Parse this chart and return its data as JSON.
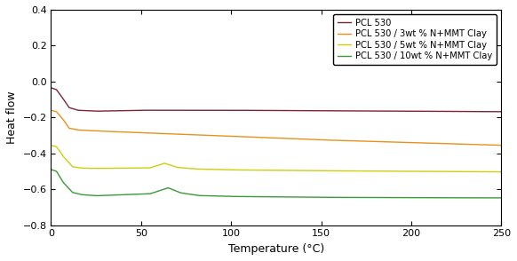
{
  "title": "",
  "xlabel": "Temperature (°C)",
  "ylabel": "Heat flow",
  "xlim": [
    0,
    250
  ],
  "ylim": [
    -0.8,
    0.4
  ],
  "xticks": [
    0,
    50,
    100,
    150,
    200,
    250
  ],
  "yticks": [
    -0.8,
    -0.6,
    -0.4,
    -0.2,
    0.0,
    0.2,
    0.4
  ],
  "curves": [
    {
      "label": "PCL 530",
      "color": "#7B2535",
      "x": [
        0,
        3,
        7,
        10,
        15,
        25,
        50,
        100,
        150,
        200,
        250
      ],
      "y": [
        -0.035,
        -0.045,
        -0.1,
        -0.145,
        -0.16,
        -0.165,
        -0.16,
        -0.16,
        -0.163,
        -0.165,
        -0.168
      ]
    },
    {
      "label": "PCL 530 / 3wt % N+MMT Clay",
      "color": "#E8911A",
      "x": [
        0,
        3,
        7,
        10,
        15,
        25,
        50,
        100,
        150,
        200,
        250
      ],
      "y": [
        -0.16,
        -0.168,
        -0.215,
        -0.26,
        -0.27,
        -0.275,
        -0.285,
        -0.305,
        -0.325,
        -0.34,
        -0.355
      ]
    },
    {
      "label": "PCL 530 / 5wt % N+MMT Clay",
      "color": "#CECE10",
      "x": [
        0,
        3,
        7,
        12,
        17,
        25,
        55,
        63,
        70,
        80,
        100,
        150,
        200,
        250
      ],
      "y": [
        -0.355,
        -0.363,
        -0.42,
        -0.475,
        -0.482,
        -0.484,
        -0.481,
        -0.455,
        -0.478,
        -0.487,
        -0.492,
        -0.497,
        -0.5,
        -0.503
      ]
    },
    {
      "label": "PCL 530 / 10wt % N+MMT Clay",
      "color": "#3A9A3A",
      "x": [
        0,
        3,
        7,
        12,
        17,
        25,
        55,
        65,
        72,
        82,
        100,
        150,
        200,
        250
      ],
      "y": [
        -0.49,
        -0.5,
        -0.565,
        -0.618,
        -0.63,
        -0.636,
        -0.625,
        -0.592,
        -0.62,
        -0.635,
        -0.64,
        -0.645,
        -0.647,
        -0.648
      ]
    }
  ],
  "background_color": "#ffffff",
  "legend_fontsize": 7.2,
  "axis_fontsize": 9,
  "tick_fontsize": 8,
  "linewidth": 1.0
}
